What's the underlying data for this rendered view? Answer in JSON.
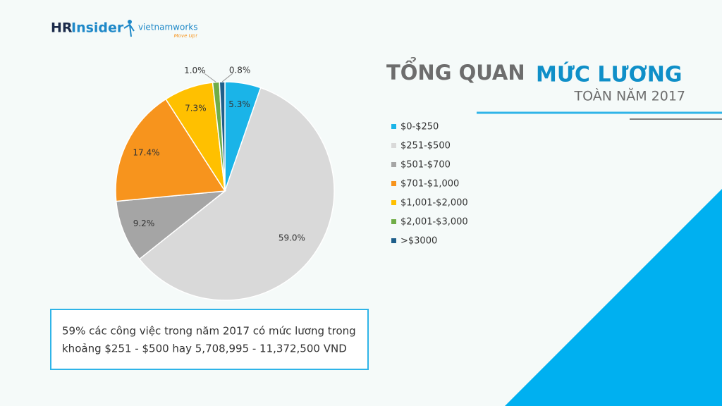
{
  "logo": {
    "brand_1": "HR",
    "brand_2": "Insider",
    "partner": "vietnamworks",
    "tagline": "Move Up!"
  },
  "header": {
    "title_1": "TỔNG QUAN",
    "title_2": "MỨC LƯƠNG",
    "subtitle": "TOÀN  NĂM 2017"
  },
  "chart_data": {
    "type": "pie",
    "categories": [
      "$0-$250",
      "$251-$500",
      "$501-$700",
      "$701-$1,000",
      "$1,001-$2,000",
      "$2,001-$3,000",
      ">$3000"
    ],
    "values": [
      5.3,
      59.0,
      9.2,
      17.4,
      7.3,
      1.0,
      0.8
    ],
    "value_labels": [
      "5.3%",
      "59.0%",
      "9.2%",
      "17.4%",
      "7.3%",
      "1.0%",
      "0.8%"
    ],
    "colors": [
      "#1ab4e8",
      "#d9d9d9",
      "#a5a5a5",
      "#f7941d",
      "#ffc000",
      "#70ad47",
      "#1f5f8b"
    ],
    "legend": "right"
  },
  "note": {
    "lines": [
      "59% các công việc trong năm 2017 có mức lương trong",
      "khoảng $251 - $500 hay 5,708,995 - 11,372,500 VND"
    ]
  }
}
